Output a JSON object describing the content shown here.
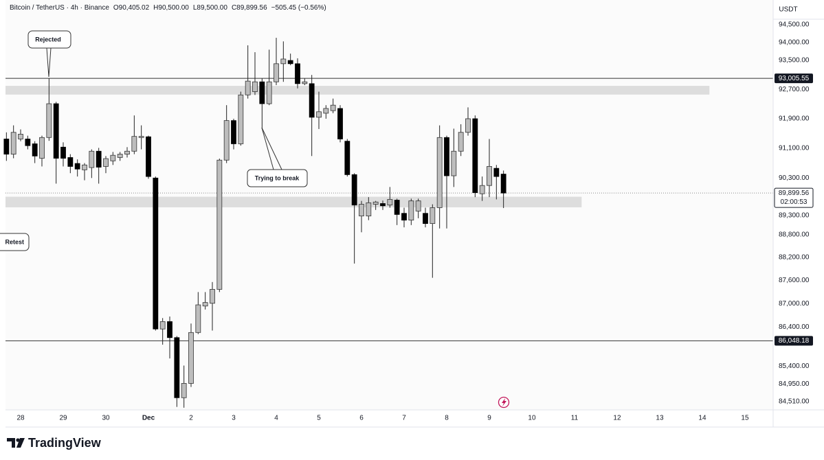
{
  "header": {
    "symbol": "Bitcoin / TetherUS · 4h · Binance",
    "open": "O90,405.02",
    "high": "H90,500.00",
    "low": "L89,500.00",
    "close": "C89,899.56",
    "change": "−505.45 (−0.56%)"
  },
  "brand": "TradingView",
  "chart_data": {
    "type": "candlestick",
    "currency": "USDT",
    "log_scale": true,
    "up_color": "#bdbdbd",
    "down_color": "#000000",
    "open": [
      91350,
      90940,
      91350,
      91350,
      91220,
      90830,
      91390,
      92310,
      91130,
      90850,
      90690,
      90520,
      90580,
      91020,
      90610,
      90760,
      90850,
      90940,
      91020,
      91390,
      91410,
      90300,
      86350,
      86540,
      86130,
      84610,
      84970,
      86260,
      86940,
      87010,
      87370,
      90780,
      91850,
      91220,
      92550,
      92640,
      92910,
      92310,
      92910,
      93410,
      93500,
      93410,
      92860,
      92860,
      91940,
      92050,
      92120,
      92180,
      91290,
      90390,
      89290,
      89290,
      89600,
      89620,
      89580,
      89710,
      89360,
      89180,
      89420,
      89360,
      89090,
      89510,
      91390,
      90360,
      91020,
      91530,
      91900,
      89880,
      90100,
      90560,
      90405.02
    ],
    "high": [
      91530,
      91720,
      91610,
      91440,
      91290,
      91440,
      93000,
      92360,
      91260,
      90940,
      90800,
      90700,
      91070,
      91110,
      90890,
      91000,
      91000,
      91130,
      91990,
      91720,
      91440,
      90340,
      86630,
      86670,
      86170,
      85420,
      86490,
      87300,
      87300,
      87560,
      90820,
      92270,
      91900,
      92640,
      93920,
      93730,
      93000,
      93800,
      94130,
      94030,
      93690,
      93560,
      93000,
      93100,
      92640,
      92270,
      92450,
      92270,
      91350,
      90430,
      89690,
      89790,
      89690,
      89700,
      90060,
      89750,
      89510,
      89750,
      89750,
      89510,
      89600,
      91720,
      91440,
      91630,
      91750,
      92210,
      91990,
      90340,
      91350,
      90650,
      90500
    ],
    "low": [
      90760,
      90830,
      91290,
      91070,
      90700,
      90610,
      91300,
      90150,
      90610,
      90430,
      90340,
      90240,
      90300,
      90150,
      90430,
      90650,
      90760,
      90850,
      90940,
      91070,
      90280,
      86310,
      85950,
      85600,
      84380,
      84360,
      84880,
      86220,
      86850,
      86310,
      87300,
      90700,
      91070,
      91170,
      92450,
      92550,
      91630,
      92270,
      92820,
      92910,
      93370,
      92730,
      92820,
      90890,
      91620,
      91900,
      92050,
      91260,
      90340,
      88040,
      88860,
      89180,
      89450,
      89450,
      89510,
      89050,
      88990,
      89050,
      89230,
      88990,
      87670,
      88960,
      88960,
      90060,
      90890,
      91440,
      89790,
      89690,
      89790,
      89730,
      89500
    ],
    "close": [
      90940,
      91530,
      91480,
      91170,
      90890,
      91390,
      92310,
      90830,
      90830,
      90610,
      90540,
      90650,
      91020,
      90590,
      90820,
      90910,
      90940,
      91020,
      91420,
      91420,
      90340,
      86350,
      86540,
      86130,
      84610,
      84970,
      86260,
      86970,
      87030,
      87370,
      90780,
      91850,
      91220,
      92550,
      92930,
      92910,
      92310,
      92910,
      93410,
      93540,
      93410,
      92860,
      92910,
      91940,
      92090,
      92180,
      92270,
      91350,
      90390,
      89580,
      89600,
      89640,
      89660,
      89560,
      89730,
      89330,
      89180,
      89690,
      89690,
      89090,
      89510,
      91390,
      90360,
      91020,
      91530,
      91900,
      89910,
      90100,
      90610,
      90340,
      89899.56
    ],
    "ylim": [
      84340,
      95190
    ],
    "yticks": [
      {
        "value": 94500,
        "label": "94,500.00"
      },
      {
        "value": 94000,
        "label": "94,000.00"
      },
      {
        "value": 93500,
        "label": "93,500.00"
      },
      {
        "value": 92700,
        "label": "92,700.00"
      },
      {
        "value": 91900,
        "label": "91,900.00"
      },
      {
        "value": 91100,
        "label": "91,100.00"
      },
      {
        "value": 90300,
        "label": "90,300.00"
      },
      {
        "value": 89300,
        "label": "89,300.00"
      },
      {
        "value": 88800,
        "label": "88,800.00"
      },
      {
        "value": 88200,
        "label": "88,200.00"
      },
      {
        "value": 87600,
        "label": "87,600.00"
      },
      {
        "value": 87000,
        "label": "87,000.00"
      },
      {
        "value": 86400,
        "label": "86,400.00"
      },
      {
        "value": 85400,
        "label": "85,400.00"
      },
      {
        "value": 84950,
        "label": "84,950.00"
      },
      {
        "value": 84510,
        "label": "84,510.00"
      }
    ],
    "xlim": [
      -0.13,
      107.97
    ],
    "xticks": [
      {
        "value": 2,
        "label": "28"
      },
      {
        "value": 8,
        "label": "29"
      },
      {
        "value": 14,
        "label": "30"
      },
      {
        "value": 20,
        "label": "Dec"
      },
      {
        "value": 26,
        "label": "2"
      },
      {
        "value": 32,
        "label": "3"
      },
      {
        "value": 38,
        "label": "4"
      },
      {
        "value": 44,
        "label": "5"
      },
      {
        "value": 50,
        "label": "6"
      },
      {
        "value": 56,
        "label": "7"
      },
      {
        "value": 62,
        "label": "8"
      },
      {
        "value": 68,
        "label": "9"
      },
      {
        "value": 74,
        "label": "10"
      },
      {
        "value": 80,
        "label": "11"
      },
      {
        "value": 86,
        "label": "12"
      },
      {
        "value": 92,
        "label": "13"
      },
      {
        "value": 98,
        "label": "14"
      },
      {
        "value": 104,
        "label": "15"
      }
    ],
    "price_lines": [
      {
        "value": 93005.55,
        "label": "93,005.55"
      },
      {
        "value": 86048.18,
        "label": "86,048.18"
      }
    ],
    "last_price": {
      "value": 89899.56,
      "label": "89,899.56",
      "countdown": "02:00:53"
    },
    "zones": [
      {
        "ylim": [
          92560,
          92800
        ],
        "xlim": [
          -0.13,
          99
        ]
      },
      {
        "ylim": [
          89520,
          89800
        ],
        "xlim": [
          -0.13,
          81
        ]
      }
    ],
    "annotations": [
      "Rejected",
      "Trying to break",
      "Retest"
    ]
  }
}
